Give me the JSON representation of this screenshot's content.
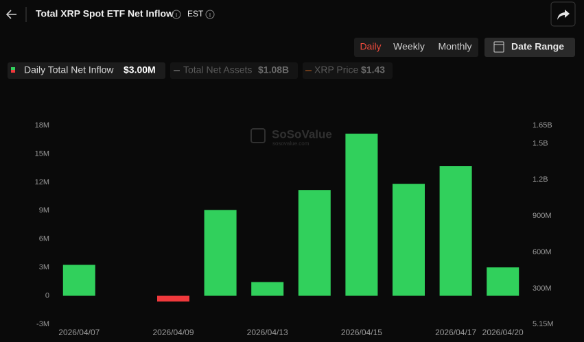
{
  "header": {
    "title": "Total XRP Spot ETF Net Inflow",
    "timezone": "EST",
    "tabs": [
      "Daily",
      "Weekly",
      "Monthly"
    ],
    "date_range": "Date Range",
    "legend": [
      {
        "name": "Daily Total Net Inflow",
        "value": "$3.00M"
      },
      {
        "name": "Total Net Assets",
        "value": "$1.08B"
      },
      {
        "name": "XRP Price",
        "value": "$1.43"
      }
    ]
  },
  "watermark": {
    "brand": "SoSoValue",
    "site": "sosovalue.com"
  },
  "chart_data": {
    "type": "bar",
    "categories": [
      "2026/04/07",
      null,
      "2026/04/09",
      null,
      "2026/04/13",
      null,
      "2026/04/15",
      null,
      "2026/04/17",
      "2026/04/20"
    ],
    "values": [
      3270000,
      0,
      -600000,
      9070000,
      1450000,
      11180000,
      17130000,
      11830000,
      13720000,
      3000000
    ],
    "positive_color": "#31d05c",
    "negative_color": "#f0393c",
    "ylim": [
      -3000000,
      18000000
    ],
    "yticks": [
      {
        "value": -3000000,
        "label": "-3M"
      },
      0,
      {
        "value": 3000000,
        "label": "3M"
      },
      {
        "value": 6000000,
        "label": "6M"
      },
      {
        "value": 9000000,
        "label": "9M"
      },
      {
        "value": 12000000,
        "label": "12M"
      },
      {
        "value": 15000000,
        "label": "15M"
      },
      {
        "value": 18000000,
        "label": "18M"
      }
    ],
    "y2lim": [
      5150000,
      1650000000
    ],
    "y2ticks": [
      {
        "value": 5150000,
        "label": "5.15M"
      },
      {
        "value": 300000000,
        "label": "300M"
      },
      {
        "value": 600000000,
        "label": "600M"
      },
      {
        "value": 900000000,
        "label": "900M"
      },
      {
        "value": 1200000000,
        "label": "1.2B"
      },
      {
        "value": 1500000000,
        "label": "1.5B"
      },
      {
        "value": 1650000000,
        "label": "1.65B"
      }
    ],
    "grid": false
  }
}
